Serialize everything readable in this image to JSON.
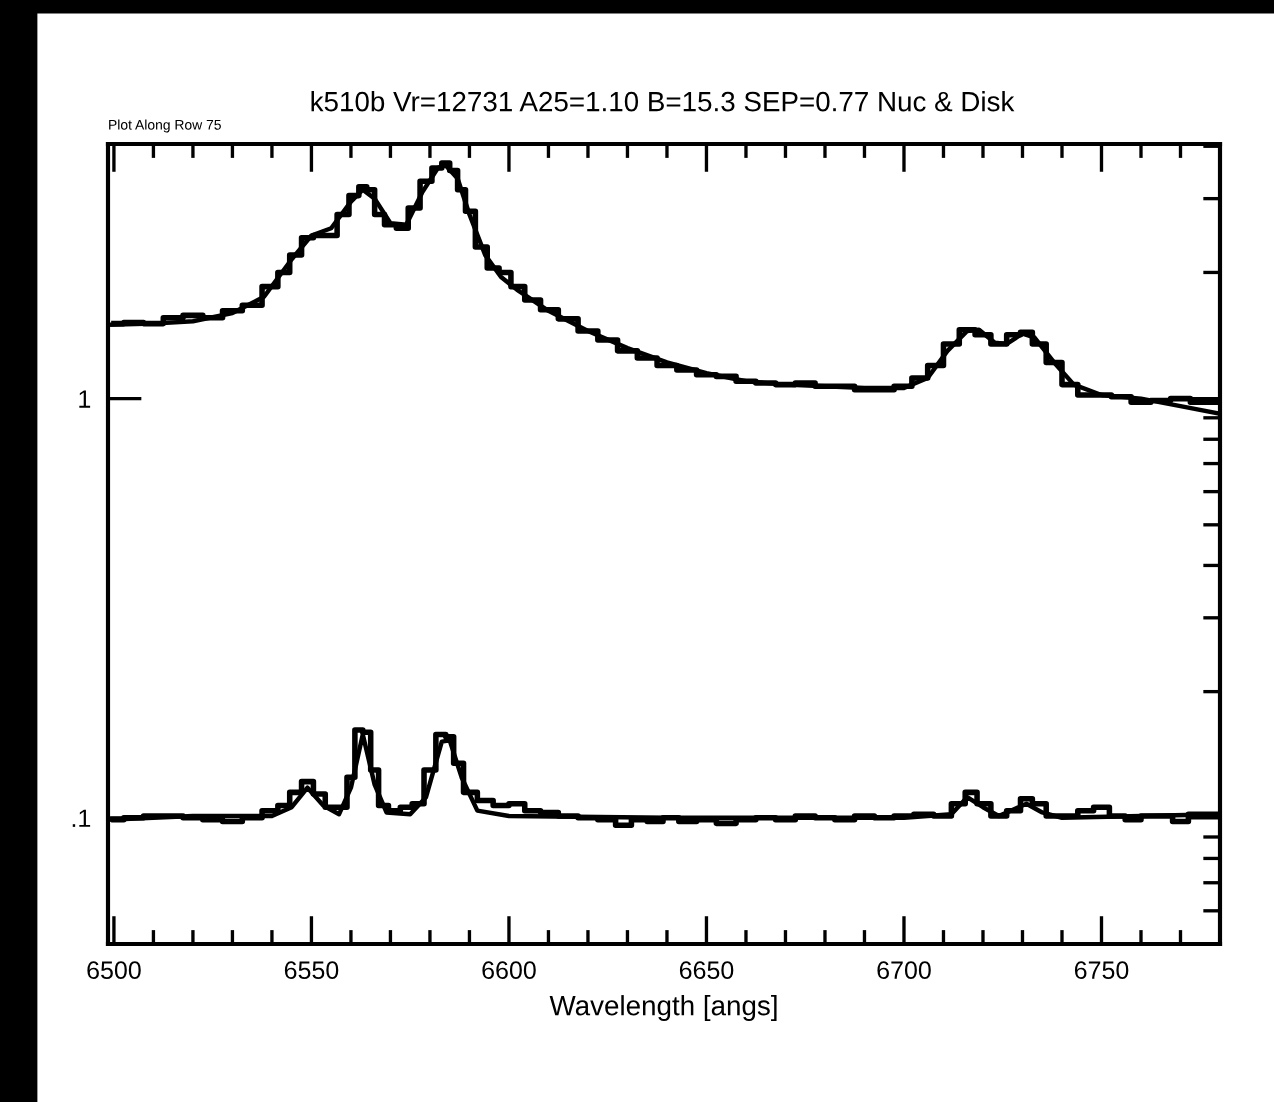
{
  "chart_data": {
    "type": "line",
    "title": "k510b Vr=12731 A25=1.10 B=15.3 SEP=0.77 Nuc & Disk",
    "subtitle": "Plot Along Row 75",
    "xlabel": "Wavelength [angs]",
    "log": "y",
    "grid": false,
    "legend": false,
    "xlim": [
      6498.5,
      6780
    ],
    "ylim": [
      0.05,
      4.05
    ],
    "xticks": [
      6500,
      {
        "value": 6510,
        "label": null
      },
      {
        "value": 6520,
        "label": null
      },
      {
        "value": 6530,
        "label": null
      },
      {
        "value": 6540,
        "label": null
      },
      6550,
      {
        "value": 6560,
        "label": null
      },
      {
        "value": 6570,
        "label": null
      },
      {
        "value": 6580,
        "label": null
      },
      {
        "value": 6590,
        "label": null
      },
      6600,
      {
        "value": 6610,
        "label": null
      },
      {
        "value": 6620,
        "label": null
      },
      {
        "value": 6630,
        "label": null
      },
      {
        "value": 6640,
        "label": null
      },
      6650,
      {
        "value": 6660,
        "label": null
      },
      {
        "value": 6670,
        "label": null
      },
      {
        "value": 6680,
        "label": null
      },
      {
        "value": 6690,
        "label": null
      },
      6700,
      {
        "value": 6710,
        "label": null
      },
      {
        "value": 6720,
        "label": null
      },
      {
        "value": 6730,
        "label": null
      },
      {
        "value": 6740,
        "label": null
      },
      6750,
      {
        "value": 6760,
        "label": null
      },
      {
        "value": 6770,
        "label": null
      }
    ],
    "yticks": [
      {
        "value": 0.1,
        "label": ".1"
      },
      1
    ],
    "series": [
      {
        "type": "step",
        "color": "#000000",
        "x": [
          6500,
          6505,
          6510,
          6515,
          6520,
          6525,
          6530,
          6535,
          6540,
          6543,
          6546,
          6549,
          6552,
          6555,
          6558,
          6561,
          6563,
          6565,
          6567,
          6570,
          6573,
          6576,
          6579,
          6582,
          6584,
          6586,
          6588,
          6590,
          6593,
          6596,
          6599,
          6602,
          6606,
          6610,
          6615,
          6620,
          6625,
          6630,
          6635,
          6640,
          6645,
          6650,
          6655,
          6660,
          6665,
          6670,
          6675,
          6680,
          6685,
          6690,
          6695,
          6700,
          6704,
          6708,
          6712,
          6716,
          6720,
          6724,
          6728,
          6731,
          6734,
          6738,
          6742,
          6746,
          6750,
          6755,
          6760,
          6765,
          6770,
          6775,
          6779
        ],
        "values": [
          1.51,
          1.52,
          1.51,
          1.56,
          1.58,
          1.56,
          1.62,
          1.67,
          1.85,
          2.0,
          2.2,
          2.42,
          2.45,
          2.45,
          2.75,
          3.05,
          3.2,
          3.15,
          2.75,
          2.6,
          2.55,
          2.85,
          3.3,
          3.55,
          3.65,
          3.5,
          3.15,
          2.8,
          2.3,
          2.05,
          2.0,
          1.85,
          1.72,
          1.63,
          1.55,
          1.45,
          1.38,
          1.3,
          1.25,
          1.2,
          1.17,
          1.14,
          1.13,
          1.1,
          1.09,
          1.08,
          1.09,
          1.07,
          1.07,
          1.05,
          1.05,
          1.07,
          1.12,
          1.2,
          1.35,
          1.46,
          1.42,
          1.35,
          1.42,
          1.44,
          1.35,
          1.22,
          1.08,
          1.02,
          1.02,
          1.01,
          0.98,
          0.99,
          1.0,
          0.98,
          0.98
        ]
      },
      {
        "type": "line",
        "color": "#000000",
        "x": [
          6499,
          6510,
          6520,
          6530,
          6538,
          6545,
          6550,
          6555,
          6560,
          6563,
          6566,
          6570,
          6574,
          6578,
          6582,
          6584,
          6587,
          6590,
          6594,
          6598,
          6602,
          6610,
          6620,
          6630,
          6640,
          6650,
          6660,
          6670,
          6680,
          6690,
          6700,
          6706,
          6711,
          6716,
          6719,
          6723,
          6726,
          6730,
          6733,
          6738,
          6743,
          6750,
          6760,
          6770,
          6780
        ],
        "values": [
          1.5,
          1.51,
          1.53,
          1.6,
          1.75,
          2.15,
          2.45,
          2.55,
          2.95,
          3.15,
          3.0,
          2.62,
          2.6,
          3.1,
          3.55,
          3.6,
          3.35,
          2.75,
          2.2,
          1.95,
          1.82,
          1.62,
          1.45,
          1.32,
          1.22,
          1.15,
          1.1,
          1.08,
          1.07,
          1.06,
          1.06,
          1.12,
          1.3,
          1.45,
          1.46,
          1.36,
          1.35,
          1.43,
          1.4,
          1.22,
          1.08,
          1.02,
          1.0,
          0.96,
          0.92
        ]
      },
      {
        "type": "step",
        "color": "#000000",
        "x": [
          6500,
          6505,
          6510,
          6515,
          6520,
          6525,
          6530,
          6535,
          6540,
          6543,
          6546,
          6549,
          6552,
          6555,
          6558,
          6560,
          6562,
          6564,
          6566,
          6568,
          6571,
          6574,
          6577,
          6580,
          6583,
          6585,
          6587,
          6590,
          6594,
          6598,
          6602,
          6606,
          6610,
          6615,
          6620,
          6625,
          6629,
          6633,
          6637,
          6641,
          6645,
          6650,
          6655,
          6660,
          6665,
          6670,
          6675,
          6680,
          6685,
          6690,
          6695,
          6700,
          6705,
          6710,
          6714,
          6717,
          6720,
          6724,
          6728,
          6731,
          6734,
          6738,
          6742,
          6746,
          6750,
          6754,
          6758,
          6762,
          6766,
          6770,
          6774,
          6779
        ],
        "values": [
          0.099,
          0.1,
          0.101,
          0.101,
          0.1,
          0.099,
          0.098,
          0.1,
          0.104,
          0.107,
          0.115,
          0.122,
          0.114,
          0.106,
          0.106,
          0.125,
          0.162,
          0.16,
          0.13,
          0.107,
          0.104,
          0.106,
          0.108,
          0.13,
          0.158,
          0.156,
          0.135,
          0.115,
          0.11,
          0.107,
          0.108,
          0.104,
          0.103,
          0.101,
          0.1,
          0.099,
          0.096,
          0.099,
          0.098,
          0.1,
          0.098,
          0.099,
          0.097,
          0.099,
          0.1,
          0.099,
          0.101,
          0.1,
          0.099,
          0.101,
          0.1,
          0.101,
          0.102,
          0.101,
          0.108,
          0.115,
          0.108,
          0.101,
          0.104,
          0.111,
          0.108,
          0.101,
          0.101,
          0.104,
          0.106,
          0.101,
          0.099,
          0.101,
          0.101,
          0.098,
          0.102,
          0.102
        ]
      },
      {
        "type": "line",
        "color": "#000000",
        "x": [
          6499,
          6520,
          6540,
          6545,
          6549,
          6553,
          6557,
          6560,
          6563,
          6566,
          6569,
          6575,
          6579,
          6583,
          6585,
          6588,
          6592,
          6600,
          6640,
          6700,
          6712,
          6716,
          6720,
          6724,
          6728,
          6731,
          6735,
          6740,
          6780
        ],
        "values": [
          0.099,
          0.101,
          0.101,
          0.106,
          0.118,
          0.107,
          0.102,
          0.118,
          0.158,
          0.12,
          0.103,
          0.102,
          0.112,
          0.152,
          0.153,
          0.125,
          0.104,
          0.101,
          0.1,
          0.1,
          0.102,
          0.112,
          0.106,
          0.101,
          0.105,
          0.108,
          0.103,
          0.1,
          0.102
        ]
      }
    ]
  }
}
